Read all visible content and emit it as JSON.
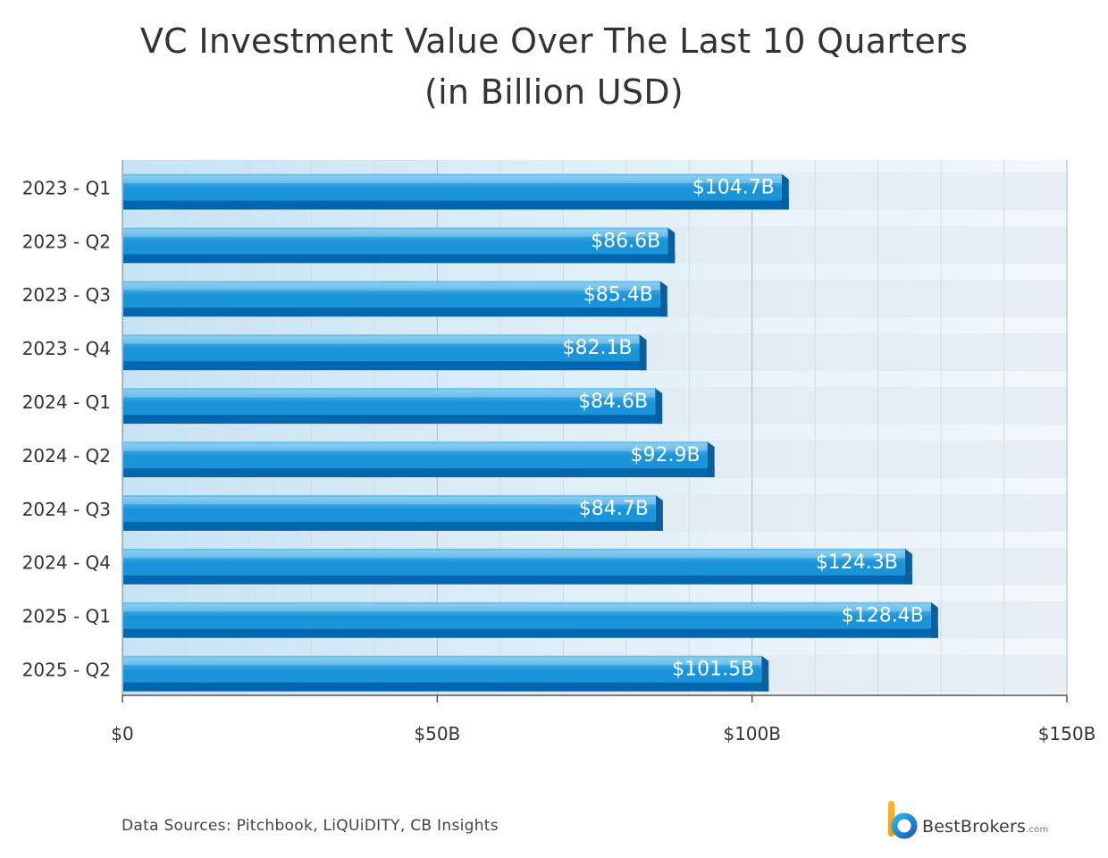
{
  "title": {
    "line1": "VC Investment Value Over The Last 10 Quarters",
    "line2": "(in Billion USD)"
  },
  "chart_data": {
    "type": "bar",
    "orientation": "horizontal",
    "categories": [
      "2023 - Q1",
      "2023 - Q2",
      "2023 - Q3",
      "2023 - Q4",
      "2024 - Q1",
      "2024 - Q2",
      "2024 - Q3",
      "2024 - Q4",
      "2025 - Q1",
      "2025 - Q2"
    ],
    "values": [
      104.7,
      86.6,
      85.4,
      82.1,
      84.6,
      92.9,
      84.7,
      124.3,
      128.4,
      101.5
    ],
    "data_labels": [
      "$104.7B",
      "$86.6B",
      "$85.4B",
      "$82.1B",
      "$84.6B",
      "$92.9B",
      "$84.7B",
      "$124.3B",
      "$128.4B",
      "$101.5B"
    ],
    "xlim": [
      0,
      150
    ],
    "xticks": [
      0,
      50,
      100,
      150
    ],
    "xtick_labels": [
      "$0",
      "$50B",
      "$100B",
      "$150B"
    ],
    "minor_step": 10,
    "xlabel": "",
    "ylabel": "",
    "grid": true,
    "colors": {
      "bar_top": "#6cc3f0",
      "bar_mid": "#1a93d9",
      "bar_bottom": "#0066ad",
      "bar_side": "#0a5f9e",
      "band": "#dfe8ef",
      "plot_left": "#c6e3f5",
      "plot_right": "#f2f7fb"
    }
  },
  "footer": {
    "source": "Data Sources: Pitchbook, LiQUiDITY, CB Insights"
  },
  "brand": {
    "name": "BestBrokers",
    "domain": ".com"
  }
}
